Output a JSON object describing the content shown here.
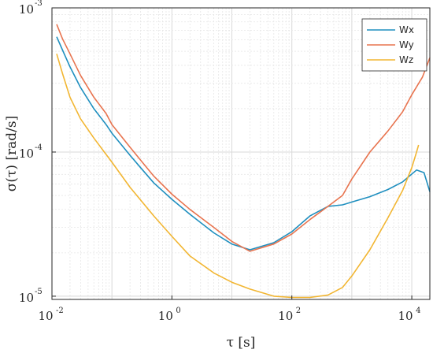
{
  "chart_data": {
    "type": "line",
    "xscale": "log",
    "yscale": "log",
    "xlim": [
      0.01,
      20000
    ],
    "ylim": [
      9.5e-06,
      0.001
    ],
    "xticks": [
      {
        "base": "10",
        "exp": "-2",
        "value": 0.01
      },
      {
        "base": "10",
        "exp": "0",
        "value": 1
      },
      {
        "base": "10",
        "exp": "2",
        "value": 100
      },
      {
        "base": "10",
        "exp": "4",
        "value": 10000
      }
    ],
    "yticks": [
      {
        "base": "10",
        "exp": "-5",
        "value": 1e-05
      },
      {
        "base": "10",
        "exp": "-4",
        "value": 0.0001
      },
      {
        "base": "10",
        "exp": "-3",
        "value": 0.001
      }
    ],
    "xlabel": "τ [s]",
    "ylabel": "σ(τ) [rad/s]",
    "grid": true,
    "legend_position": "top-right",
    "series": [
      {
        "name": "Wx",
        "color": "#1f8fbf",
        "points": [
          [
            0.012,
            0.00063
          ],
          [
            0.015,
            0.00051
          ],
          [
            0.02,
            0.00039
          ],
          [
            0.03,
            0.00028
          ],
          [
            0.05,
            0.0002
          ],
          [
            0.08,
            0.000155
          ],
          [
            0.1,
            0.000135
          ],
          [
            0.2,
            9.5e-05
          ],
          [
            0.3,
            7.8e-05
          ],
          [
            0.5,
            6.1e-05
          ],
          [
            1,
            4.7e-05
          ],
          [
            2,
            3.7e-05
          ],
          [
            5,
            2.75e-05
          ],
          [
            10,
            2.3e-05
          ],
          [
            20,
            2.1e-05
          ],
          [
            50,
            2.35e-05
          ],
          [
            100,
            2.8e-05
          ],
          [
            200,
            3.6e-05
          ],
          [
            400,
            4.2e-05
          ],
          [
            700,
            4.3e-05
          ],
          [
            1000,
            4.5e-05
          ],
          [
            2000,
            4.9e-05
          ],
          [
            4000,
            5.5e-05
          ],
          [
            7000,
            6.2e-05
          ],
          [
            12000,
            7.5e-05
          ],
          [
            16000,
            7.2e-05
          ],
          [
            20000,
            5.3e-05
          ]
        ]
      },
      {
        "name": "Wy",
        "color": "#e8744f",
        "points": [
          [
            0.012,
            0.00077
          ],
          [
            0.015,
            0.00061
          ],
          [
            0.02,
            0.00048
          ],
          [
            0.03,
            0.00034
          ],
          [
            0.05,
            0.00024
          ],
          [
            0.08,
            0.000185
          ],
          [
            0.1,
            0.000155
          ],
          [
            0.2,
            0.000108
          ],
          [
            0.3,
            8.8e-05
          ],
          [
            0.5,
            6.8e-05
          ],
          [
            1,
            5.1e-05
          ],
          [
            2,
            4e-05
          ],
          [
            5,
            3e-05
          ],
          [
            10,
            2.4e-05
          ],
          [
            20,
            2.05e-05
          ],
          [
            50,
            2.3e-05
          ],
          [
            100,
            2.7e-05
          ],
          [
            200,
            3.4e-05
          ],
          [
            400,
            4.2e-05
          ],
          [
            700,
            5e-05
          ],
          [
            1000,
            6.5e-05
          ],
          [
            2000,
            0.0001
          ],
          [
            4000,
            0.00014
          ],
          [
            7000,
            0.00019
          ],
          [
            10000,
            0.00025
          ],
          [
            15000,
            0.00033
          ],
          [
            20000,
            0.00045
          ]
        ]
      },
      {
        "name": "Wz",
        "color": "#f2b632",
        "points": [
          [
            0.012,
            0.00048
          ],
          [
            0.015,
            0.00035
          ],
          [
            0.02,
            0.00024
          ],
          [
            0.03,
            0.00017
          ],
          [
            0.05,
            0.000125
          ],
          [
            0.1,
            8.5e-05
          ],
          [
            0.2,
            5.7e-05
          ],
          [
            0.5,
            3.6e-05
          ],
          [
            1,
            2.6e-05
          ],
          [
            2,
            1.9e-05
          ],
          [
            5,
            1.45e-05
          ],
          [
            10,
            1.25e-05
          ],
          [
            20,
            1.12e-05
          ],
          [
            50,
            1e-05
          ],
          [
            100,
            9.8e-06
          ],
          [
            200,
            9.8e-06
          ],
          [
            400,
            1.02e-05
          ],
          [
            700,
            1.15e-05
          ],
          [
            1000,
            1.38e-05
          ],
          [
            2000,
            2.1e-05
          ],
          [
            4000,
            3.5e-05
          ],
          [
            7000,
            5.4e-05
          ],
          [
            10000,
            7.8e-05
          ],
          [
            12000,
            0.0001
          ],
          [
            13000,
            0.000112
          ]
        ]
      }
    ]
  }
}
